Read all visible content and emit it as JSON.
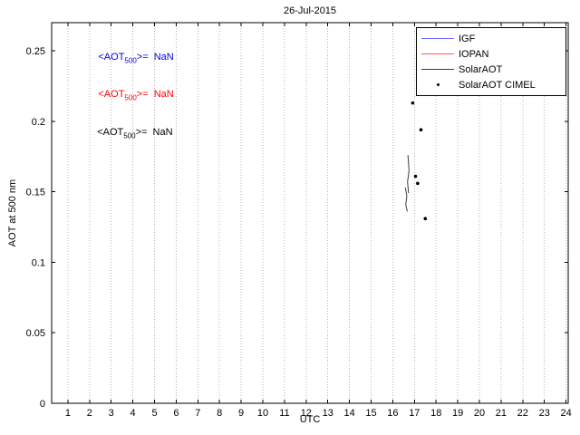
{
  "chart_data": {
    "type": "scatter",
    "title": "26-Jul-2015",
    "xlabel": "UTC",
    "ylabel": "AOT at 500 nm",
    "xlim": [
      0.25,
      24.1
    ],
    "ylim": [
      0,
      0.27
    ],
    "xticks": [
      1,
      2,
      3,
      4,
      5,
      6,
      7,
      8,
      9,
      10,
      11,
      12,
      13,
      14,
      15,
      16,
      17,
      18,
      19,
      20,
      21,
      22,
      23,
      24
    ],
    "yticks": [
      0,
      0.05,
      0.1,
      0.15,
      0.2,
      0.25
    ],
    "ytick_labels": [
      "0",
      "0.05",
      "0.1",
      "0.15",
      "0.2",
      "0.25"
    ],
    "grid": "vertical-dotted",
    "grid_color": "#b4b4b4",
    "legend": {
      "position": "top-right",
      "entries": [
        {
          "label": "IGF",
          "color": "#6b6bff",
          "marker": "line"
        },
        {
          "label": "IOPAN",
          "color": "#ff5a5a",
          "marker": "line"
        },
        {
          "label": "SolarAOT",
          "color": "#3c3c3c",
          "marker": "line"
        },
        {
          "label": "SolarAOT CIMEL",
          "color": "#000000",
          "marker": "dot"
        }
      ]
    },
    "annotations": [
      {
        "prefix": "<AOT",
        "sub": "500",
        "suffix": ">=  NaN",
        "color": "#0000ee",
        "x": 2.4,
        "y": 0.244
      },
      {
        "prefix": "<AOT",
        "sub": "500",
        "suffix": ">=  NaN",
        "color": "#ff0000",
        "x": 2.4,
        "y": 0.218
      },
      {
        "prefix": "<AOT",
        "sub": "500",
        "suffix": ">=  NaN",
        "color": "#000000",
        "x": 2.35,
        "y": 0.191
      }
    ],
    "series": [
      {
        "name": "IGF",
        "type": "line",
        "color": "#6b6bff",
        "segments": []
      },
      {
        "name": "IOPAN",
        "type": "line",
        "color": "#ff5a5a",
        "segments": []
      },
      {
        "name": "SolarAOT",
        "type": "line",
        "color": "#3c3c3c",
        "segments": [
          [
            [
              16.7,
              0.176
            ],
            [
              16.75,
              0.165
            ],
            [
              16.68,
              0.157
            ],
            [
              16.73,
              0.149
            ]
          ],
          [
            [
              16.58,
              0.153
            ],
            [
              16.65,
              0.147
            ],
            [
              16.6,
              0.141
            ],
            [
              16.67,
              0.136
            ]
          ]
        ]
      },
      {
        "name": "SolarAOT CIMEL",
        "type": "scatter",
        "color": "#000000",
        "points": [
          [
            16.92,
            0.213
          ],
          [
            17.3,
            0.194
          ],
          [
            17.05,
            0.161
          ],
          [
            17.15,
            0.156
          ],
          [
            17.5,
            0.131
          ]
        ]
      }
    ]
  }
}
